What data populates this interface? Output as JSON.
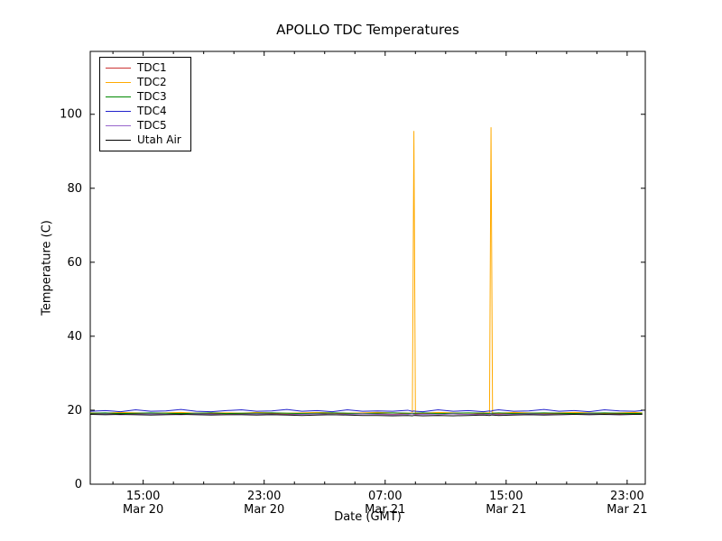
{
  "chart_data": {
    "type": "line",
    "title": "APOLLO TDC Temperatures",
    "xlabel": "Date (GMT)",
    "ylabel": "Temperature (C)",
    "x_unit": "hours since Mar 20 00:00 GMT",
    "xlim": [
      11.5,
      48.2
    ],
    "ylim": [
      0,
      117
    ],
    "yticks": [
      0,
      20,
      40,
      60,
      80,
      100
    ],
    "xticks": [
      {
        "value": 15,
        "time": "15:00",
        "date": "Mar 20"
      },
      {
        "value": 23,
        "time": "23:00",
        "date": "Mar 20"
      },
      {
        "value": 31,
        "time": "07:00",
        "date": "Mar 21"
      },
      {
        "value": 39,
        "time": "15:00",
        "date": "Mar 21"
      },
      {
        "value": 47,
        "time": "23:00",
        "date": "Mar 21"
      }
    ],
    "minor_xtick_step": 2,
    "grid": false,
    "legend_position": "upper left",
    "x": [
      11.5,
      12.5,
      13.5,
      14.5,
      15.5,
      16.5,
      17.5,
      18.5,
      19.5,
      20.5,
      21.5,
      22.5,
      23.5,
      24.5,
      25.5,
      26.5,
      27.5,
      28.5,
      29.5,
      30.5,
      31.5,
      32.5,
      32.8,
      32.9,
      33.0,
      33.5,
      34.5,
      35.5,
      36.5,
      37.5,
      37.9,
      38.0,
      38.1,
      38.5,
      39.5,
      40.5,
      41.5,
      42.5,
      43.5,
      44.5,
      45.5,
      46.5,
      47.5,
      48.0
    ],
    "series": [
      {
        "name": "TDC1",
        "color": "#cc3333",
        "values": [
          19.1,
          19.0,
          19.2,
          19.0,
          19.1,
          18.9,
          19.1,
          19.2,
          19.0,
          19.1,
          19.0,
          19.2,
          19.1,
          18.9,
          19.0,
          19.1,
          19.2,
          19.0,
          19.1,
          19.0,
          18.9,
          19.1,
          19.0,
          19.1,
          19.0,
          19.1,
          19.2,
          19.0,
          18.9,
          19.1,
          19.0,
          19.0,
          19.1,
          19.0,
          19.2,
          19.1,
          19.0,
          19.1,
          19.2,
          19.0,
          19.1,
          19.0,
          19.2,
          19.1
        ]
      },
      {
        "name": "TDC2",
        "color": "#ffaa00",
        "values": [
          19.3,
          19.2,
          19.4,
          19.3,
          19.2,
          19.3,
          19.4,
          19.2,
          19.3,
          19.3,
          19.2,
          19.4,
          19.3,
          19.2,
          19.3,
          19.4,
          19.3,
          19.2,
          19.3,
          19.4,
          19.3,
          19.2,
          19.3,
          95.5,
          19.3,
          19.2,
          19.4,
          19.3,
          19.2,
          19.3,
          19.3,
          96.5,
          19.3,
          19.2,
          19.4,
          19.3,
          19.2,
          19.3,
          19.4,
          19.3,
          19.2,
          19.3,
          19.4,
          19.3
        ],
        "spikes": [
          {
            "x": 32.9,
            "y": 95.5
          },
          {
            "x": 38.0,
            "y": 96.5
          }
        ]
      },
      {
        "name": "TDC3",
        "color": "#008800",
        "values": [
          19.2,
          19.3,
          19.1,
          19.2,
          19.3,
          19.2,
          19.1,
          19.2,
          19.3,
          19.1,
          19.2,
          19.2,
          19.3,
          19.2,
          19.1,
          19.2,
          19.3,
          19.2,
          19.1,
          19.2,
          19.3,
          19.2,
          19.1,
          19.2,
          19.2,
          19.3,
          19.1,
          19.2,
          19.3,
          19.2,
          19.1,
          19.2,
          19.2,
          19.3,
          19.1,
          19.2,
          19.3,
          19.2,
          19.1,
          19.2,
          19.3,
          19.2,
          19.1,
          19.2
        ]
      },
      {
        "name": "TDC4",
        "color": "#2222cc",
        "values": [
          19.7,
          19.9,
          19.6,
          20.1,
          19.7,
          19.8,
          20.2,
          19.7,
          19.6,
          19.9,
          20.1,
          19.7,
          19.8,
          20.2,
          19.7,
          19.9,
          19.6,
          20.1,
          19.7,
          19.8,
          19.7,
          20.0,
          19.7,
          19.8,
          19.7,
          19.6,
          20.1,
          19.7,
          19.9,
          19.6,
          19.8,
          19.7,
          19.9,
          20.1,
          19.7,
          19.8,
          20.2,
          19.7,
          19.9,
          19.6,
          20.1,
          19.8,
          19.7,
          19.9
        ]
      },
      {
        "name": "TDC5",
        "color": "#9966cc",
        "values": [
          18.9,
          19.0,
          18.8,
          18.9,
          19.0,
          18.9,
          18.8,
          19.0,
          18.9,
          18.8,
          18.9,
          19.0,
          18.9,
          18.8,
          18.9,
          19.0,
          18.8,
          18.9,
          19.0,
          18.9,
          18.8,
          18.9,
          19.0,
          18.9,
          18.8,
          18.9,
          18.8,
          19.0,
          18.9,
          18.8,
          18.9,
          19.0,
          18.9,
          18.8,
          18.9,
          19.0,
          18.9,
          18.8,
          18.9,
          19.0,
          18.9,
          18.8,
          18.9,
          18.9
        ]
      },
      {
        "name": "Utah Air",
        "color": "#000000",
        "values": [
          18.9,
          18.8,
          18.9,
          18.8,
          18.7,
          18.8,
          18.9,
          18.8,
          18.7,
          18.8,
          18.8,
          18.7,
          18.8,
          18.7,
          18.6,
          18.7,
          18.8,
          18.7,
          18.6,
          18.6,
          18.5,
          18.6,
          18.5,
          18.6,
          18.6,
          18.5,
          18.6,
          18.5,
          18.6,
          18.7,
          18.6,
          18.7,
          18.7,
          18.6,
          18.7,
          18.8,
          18.7,
          18.8,
          18.9,
          18.8,
          18.9,
          18.8,
          18.9,
          18.9
        ]
      }
    ]
  }
}
